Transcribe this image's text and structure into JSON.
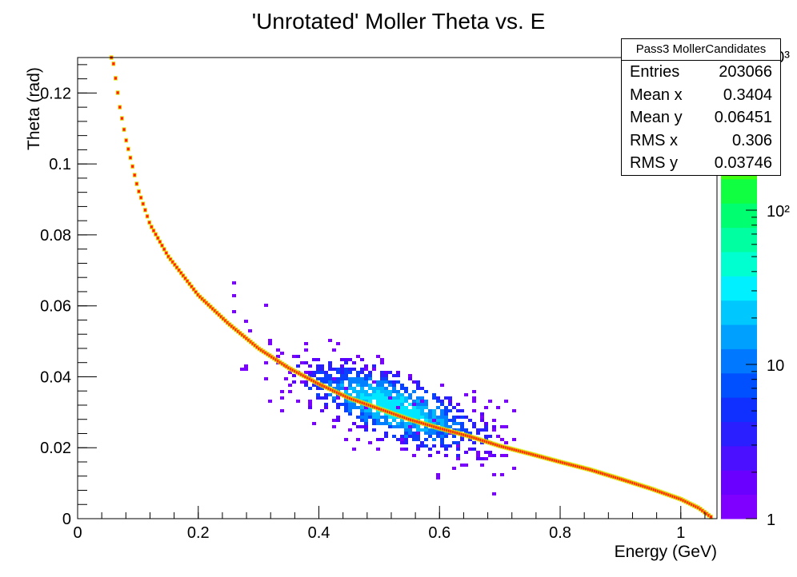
{
  "chart_data": {
    "type": "heatmap",
    "title": "'Unrotated' Moller Theta vs. E",
    "xlabel": "Energy (GeV)",
    "ylabel": "Theta (rad)",
    "xlim": [
      0,
      1.06
    ],
    "ylim": [
      0,
      0.13
    ],
    "x_ticks": [
      0,
      0.2,
      0.4,
      0.6,
      0.8,
      1
    ],
    "x_tick_labels": [
      "0",
      "0.2",
      "0.4",
      "0.6",
      "0.8",
      "1"
    ],
    "y_ticks": [
      0,
      0.02,
      0.04,
      0.06,
      0.08,
      0.1,
      0.12
    ],
    "y_tick_labels": [
      "0",
      "0.02",
      "0.04",
      "0.06",
      "0.08",
      "0.1",
      "0.12"
    ],
    "z_scale": "log",
    "z_tick_labels": [
      "1",
      "10",
      "10²",
      "10³"
    ],
    "grid": false,
    "ridge_curve": {
      "description": "Moller kinematic band (high-count ridge)",
      "x": [
        0.058,
        0.07,
        0.08,
        0.1,
        0.12,
        0.15,
        0.2,
        0.25,
        0.3,
        0.35,
        0.4,
        0.45,
        0.5,
        0.55,
        0.6,
        0.65,
        0.7,
        0.75,
        0.8,
        0.85,
        0.9,
        0.95,
        1.0,
        1.03,
        1.05
      ],
      "y": [
        0.13,
        0.116,
        0.107,
        0.093,
        0.083,
        0.074,
        0.063,
        0.055,
        0.048,
        0.0425,
        0.038,
        0.034,
        0.031,
        0.028,
        0.0255,
        0.0232,
        0.0205,
        0.0183,
        0.016,
        0.0138,
        0.0112,
        0.0085,
        0.0055,
        0.003,
        0.0005
      ]
    },
    "cluster": {
      "description": "broad low-count cluster around the band",
      "center_x": 0.52,
      "center_y": 0.032,
      "x_range": [
        0.3,
        0.72
      ],
      "y_range": [
        0.015,
        0.052
      ]
    },
    "stats": {
      "name": "Pass3 MollerCandidates",
      "entries": "203066",
      "mean_x": "0.3404",
      "mean_y": "0.06451",
      "rms_x": "0.306",
      "rms_y": "0.03746"
    }
  },
  "stats_labels": {
    "entries": "Entries",
    "mean_x": "Mean x",
    "mean_y": "Mean y",
    "rms_x": "RMS x",
    "rms_y": "RMS y"
  },
  "colors": {
    "ridge_core": "#ff1a00",
    "ridge_edge": "#ff9900",
    "ridge_halo": "#ccff00",
    "cluster_palette": [
      "#7a00ff",
      "#5a00ff",
      "#2a20ff",
      "#0a40ff",
      "#0080ff",
      "#00b8ff",
      "#00e8ff"
    ],
    "palette": [
      "#8000ff",
      "#6a00ff",
      "#4a10ff",
      "#2a20ff",
      "#1030ff",
      "#0050ff",
      "#0078ff",
      "#00a0ff",
      "#00c8ff",
      "#00f0ff",
      "#00ffd0",
      "#00ffa0",
      "#00ff70",
      "#10ff40",
      "#40ff10",
      "#70ff00",
      "#a0ff00",
      "#ccff00",
      "#eeff00"
    ]
  }
}
